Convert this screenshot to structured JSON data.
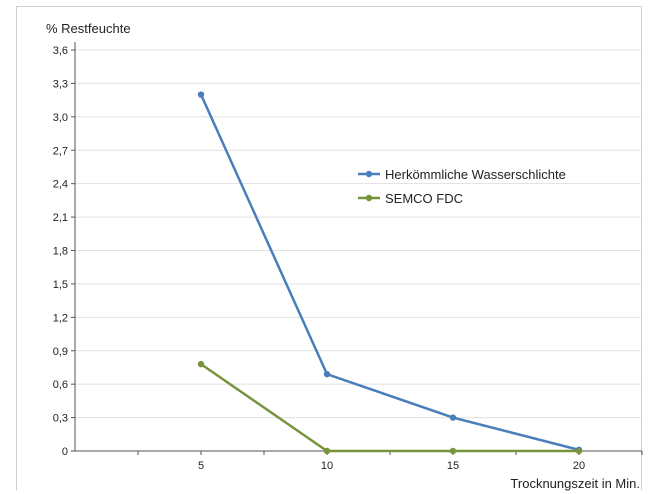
{
  "chart_data": {
    "type": "line",
    "ylabel": "% Restfeuchte",
    "xlabel": "Trocknungszeit in Min.",
    "ylim": [
      0,
      3.6
    ],
    "yticks": [
      "0",
      "0,3",
      "0,6",
      "0,9",
      "1,2",
      "1,5",
      "1,8",
      "2,1",
      "2,4",
      "2,7",
      "3,0",
      "3,3",
      "3,6"
    ],
    "xlim": [
      0,
      22.5
    ],
    "xticks": [
      {
        "value": 5,
        "label": "5"
      },
      {
        "value": 10,
        "label": "10"
      },
      {
        "value": 15,
        "label": "15"
      },
      {
        "value": 20,
        "label": "20"
      }
    ],
    "x": [
      5,
      10,
      15,
      20
    ],
    "series": [
      {
        "name": "Herkömmliche Wasserschlichte",
        "color": "#4a7ebb",
        "values": [
          3.2,
          0.69,
          0.3,
          0.01
        ]
      },
      {
        "name": "SEMCO FDC",
        "color": "#77933c",
        "values": [
          0.78,
          0.0,
          0.0,
          0.0
        ]
      }
    ],
    "grid": true,
    "legend_position": "upper-right"
  }
}
